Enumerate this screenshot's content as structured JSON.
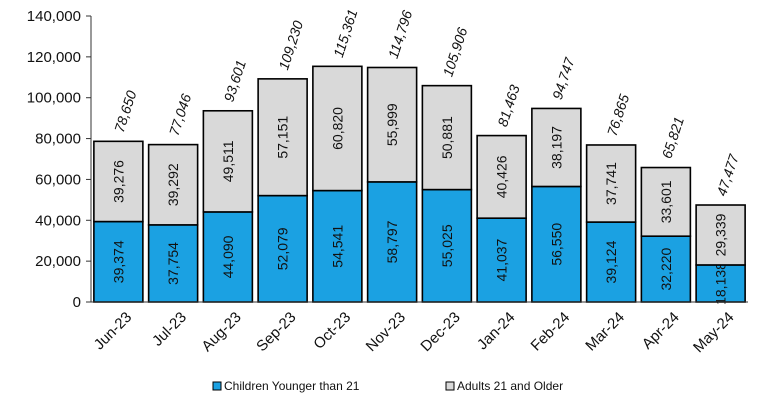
{
  "chart_data": {
    "type": "bar",
    "stacked": true,
    "categories": [
      "Jun-23",
      "Jul-23",
      "Aug-23",
      "Sep-23",
      "Oct-23",
      "Nov-23",
      "Dec-23",
      "Jan-24",
      "Feb-24",
      "Mar-24",
      "Apr-24",
      "May-24"
    ],
    "series": [
      {
        "name": "Children Younger than 21",
        "color": "#1BA1E2",
        "values": [
          39374,
          37754,
          44090,
          52079,
          54541,
          58797,
          55025,
          41037,
          56550,
          39124,
          32220,
          18138
        ]
      },
      {
        "name": "Adults 21 and Older",
        "color": "#D9D9D9",
        "values": [
          39276,
          39292,
          49511,
          57151,
          60820,
          55999,
          50881,
          40426,
          38197,
          37741,
          33601,
          29339
        ]
      }
    ],
    "totals": [
      78650,
      77046,
      93601,
      109230,
      115361,
      114796,
      105906,
      81463,
      94747,
      76865,
      65821,
      47477
    ],
    "ylim": [
      0,
      140000
    ],
    "yticks": [
      0,
      20000,
      40000,
      60000,
      80000,
      100000,
      120000,
      140000
    ],
    "ytick_labels": [
      "0",
      "20,000",
      "40,000",
      "60,000",
      "80,000",
      "100,000",
      "120,000",
      "140,000"
    ],
    "legend_position": "bottom",
    "grid": false
  }
}
